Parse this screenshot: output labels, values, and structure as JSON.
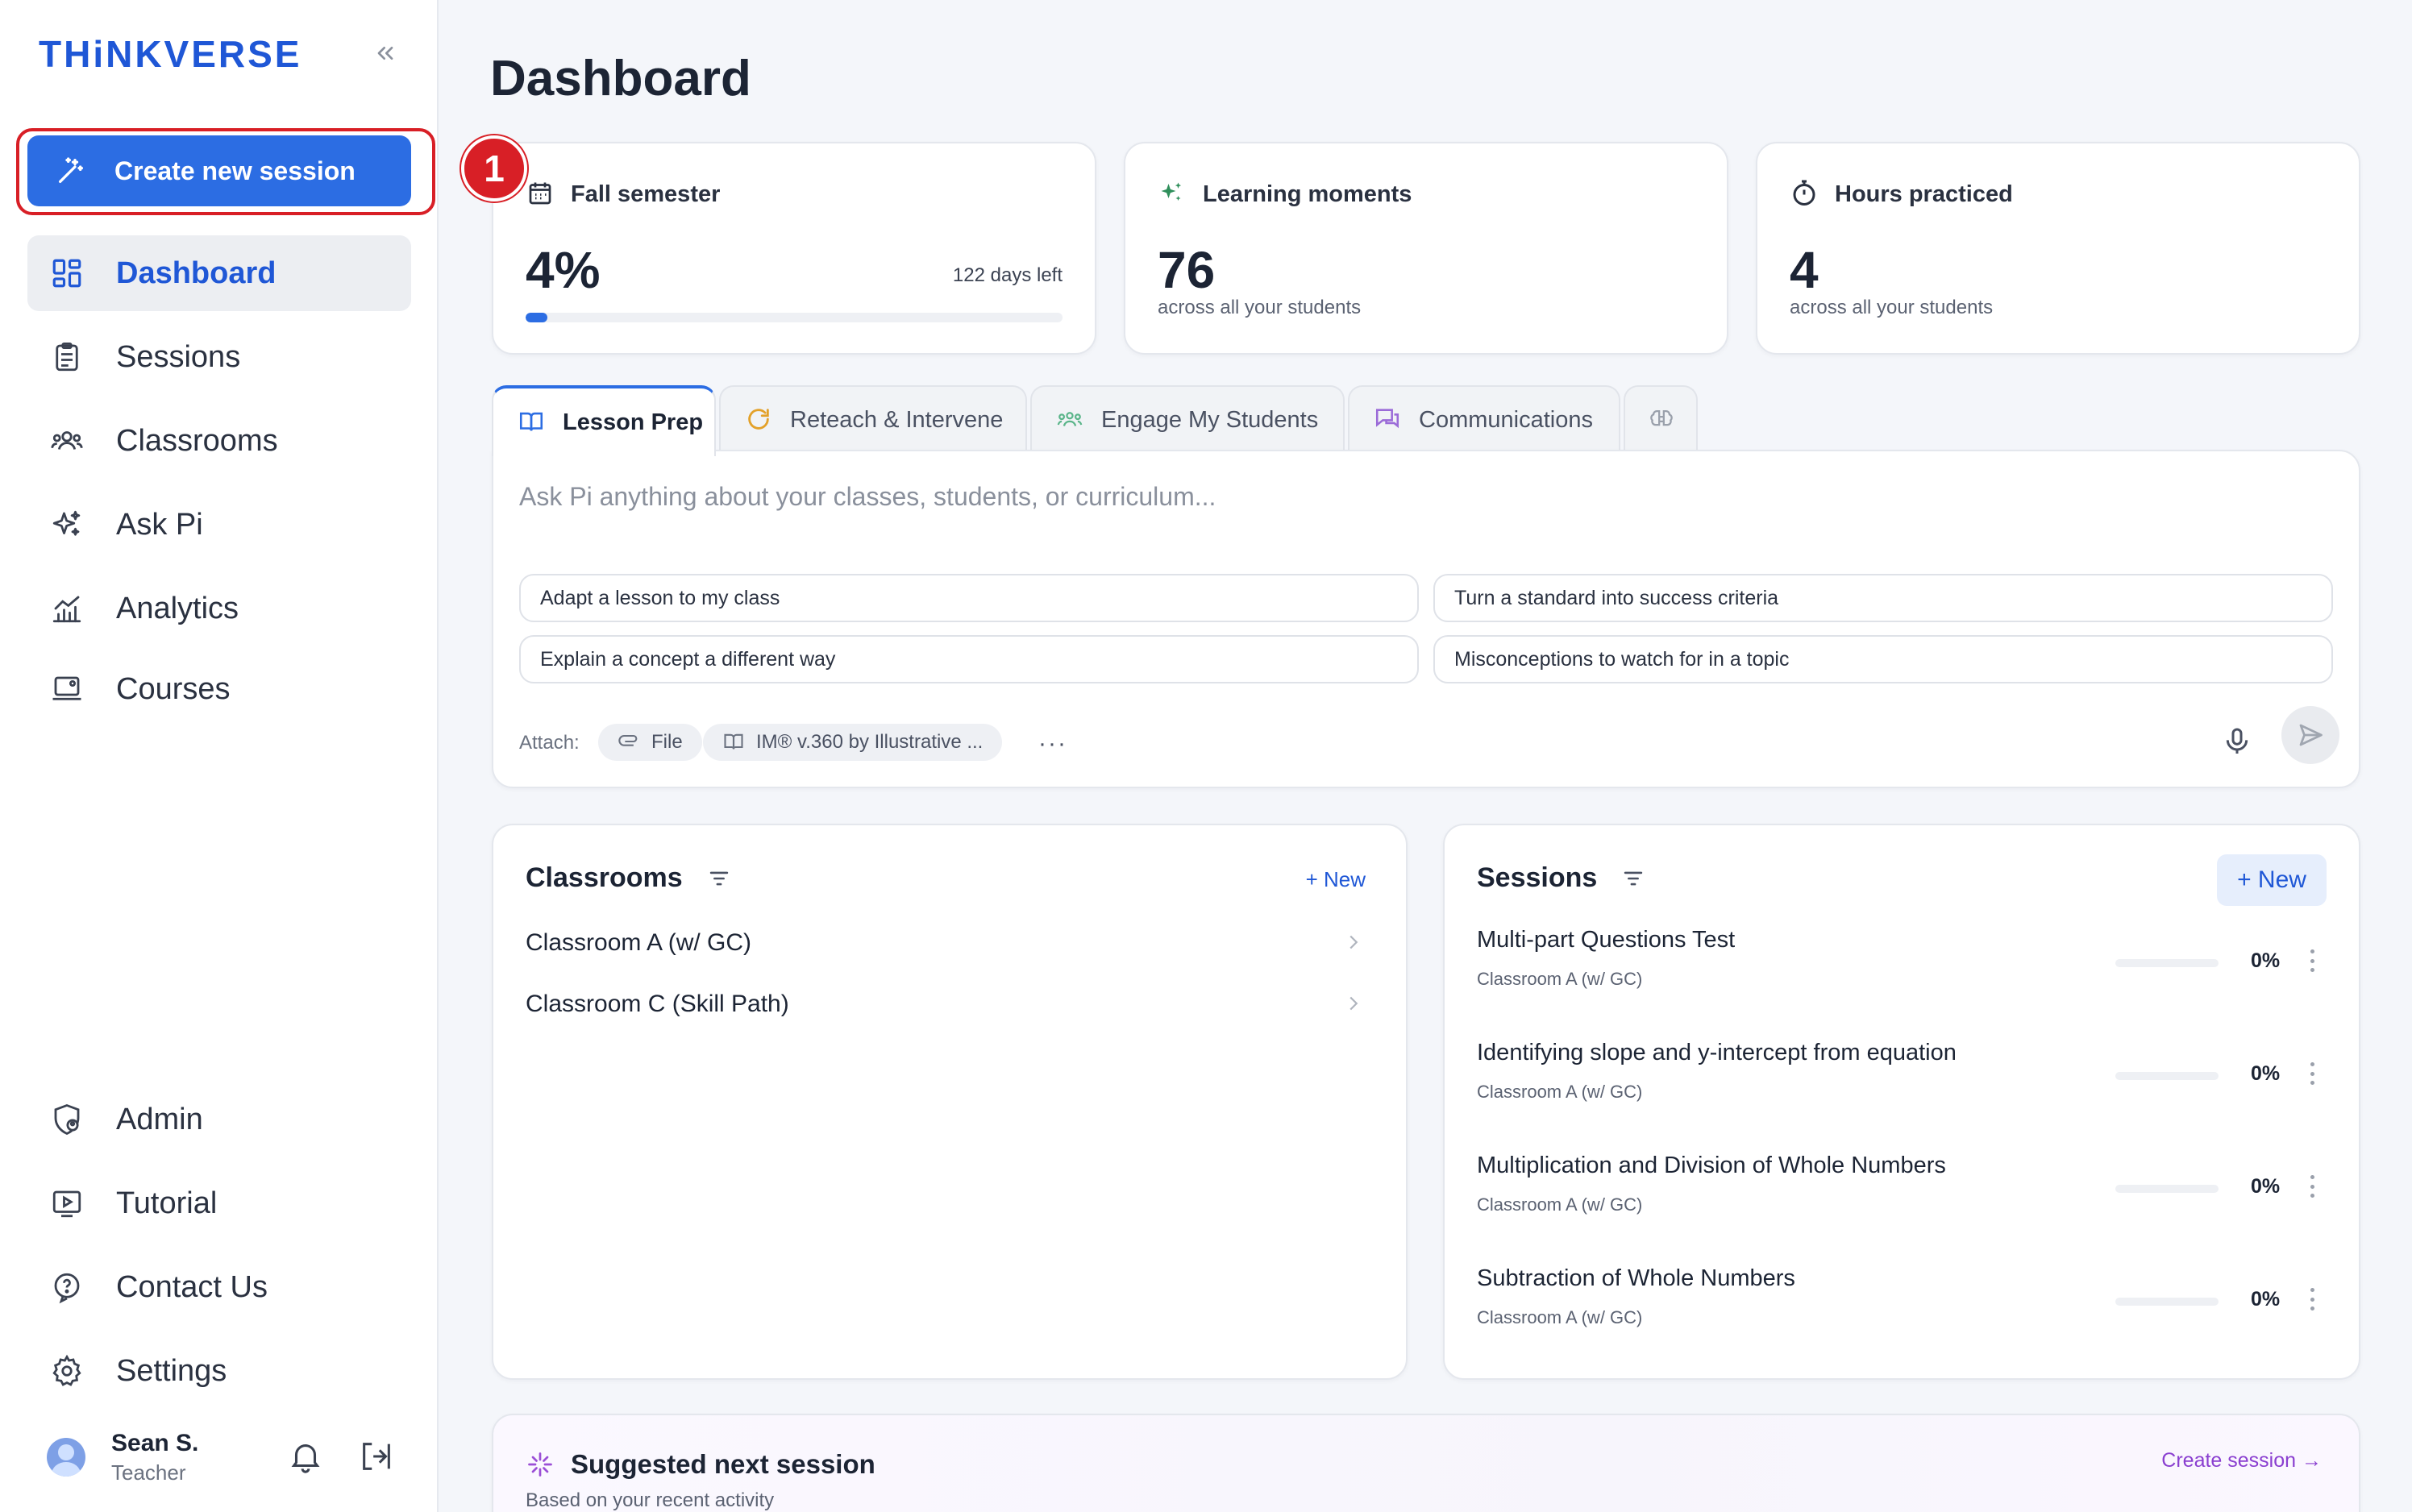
{
  "brand": {
    "logo_text": "THiNKVERSE",
    "accent": "#2c6de3",
    "highlight": "#d81f26"
  },
  "sidebar": {
    "create_label": "Create new session",
    "items": [
      {
        "label": "Dashboard",
        "icon": "dashboard-grid-icon",
        "active": true
      },
      {
        "label": "Sessions",
        "icon": "clipboard-icon"
      },
      {
        "label": "Classrooms",
        "icon": "group-icon"
      },
      {
        "label": "Ask Pi",
        "icon": "sparkles-icon"
      },
      {
        "label": "Analytics",
        "icon": "chart-icon"
      },
      {
        "label": "Courses",
        "icon": "laptop-icon"
      }
    ],
    "bottom_items": [
      {
        "label": "Admin",
        "icon": "shield-user-icon"
      },
      {
        "label": "Tutorial",
        "icon": "play-icon"
      },
      {
        "label": "Contact Us",
        "icon": "help-bubble-icon"
      },
      {
        "label": "Settings",
        "icon": "gear-icon"
      }
    ],
    "user": {
      "name": "Sean S.",
      "role": "Teacher"
    }
  },
  "annotation": {
    "step": "1"
  },
  "main": {
    "title": "Dashboard",
    "stats": {
      "semester": {
        "label": "Fall semester",
        "value": "4%",
        "progress": 0.04,
        "days_left": "122 days left"
      },
      "moments": {
        "label": "Learning moments",
        "value": "76",
        "sub": "across all your students"
      },
      "hours": {
        "label": "Hours practiced",
        "value": "4",
        "sub": "across all your students"
      }
    },
    "tabs": [
      {
        "label": "Lesson Prep",
        "icon": "book-icon",
        "active": true
      },
      {
        "label": "Reteach & Intervene",
        "icon": "refresh-icon"
      },
      {
        "label": "Engage My Students",
        "icon": "students-icon"
      },
      {
        "label": "Communications",
        "icon": "chat-icon"
      },
      {
        "label": "",
        "icon": "brain-icon"
      }
    ],
    "ask": {
      "placeholder": "Ask Pi anything about your classes, students, or curriculum...",
      "suggestions": [
        "Adapt a lesson to my class",
        "Turn a standard into success criteria",
        "Explain a concept a different way",
        "Misconceptions to watch for in a topic"
      ],
      "attach_label": "Attach:",
      "file_label": "File",
      "curriculum_label": "IM® v.360 by Illustrative ...",
      "more": "···"
    },
    "classrooms": {
      "title": "Classrooms",
      "new_label": "+ New",
      "rows": [
        "Classroom A (w/ GC)",
        "Classroom C (Skill Path)"
      ]
    },
    "sessions": {
      "title": "Sessions",
      "new_label": "+ New",
      "rows": [
        {
          "title": "Multi-part Questions Test",
          "classroom": "Classroom A (w/ GC)",
          "pct": "0%",
          "progress": 0
        },
        {
          "title": "Identifying slope and y-intercept from equation",
          "classroom": "Classroom A (w/ GC)",
          "pct": "0%",
          "progress": 0
        },
        {
          "title": "Multiplication and Division of Whole Numbers",
          "classroom": "Classroom A (w/ GC)",
          "pct": "0%",
          "progress": 0
        },
        {
          "title": "Subtraction of Whole Numbers",
          "classroom": "Classroom A (w/ GC)",
          "pct": "0%",
          "progress": 0
        }
      ]
    },
    "suggested": {
      "title": "Suggested next session",
      "sub": "Based on your recent activity",
      "link": "Create session →"
    }
  }
}
